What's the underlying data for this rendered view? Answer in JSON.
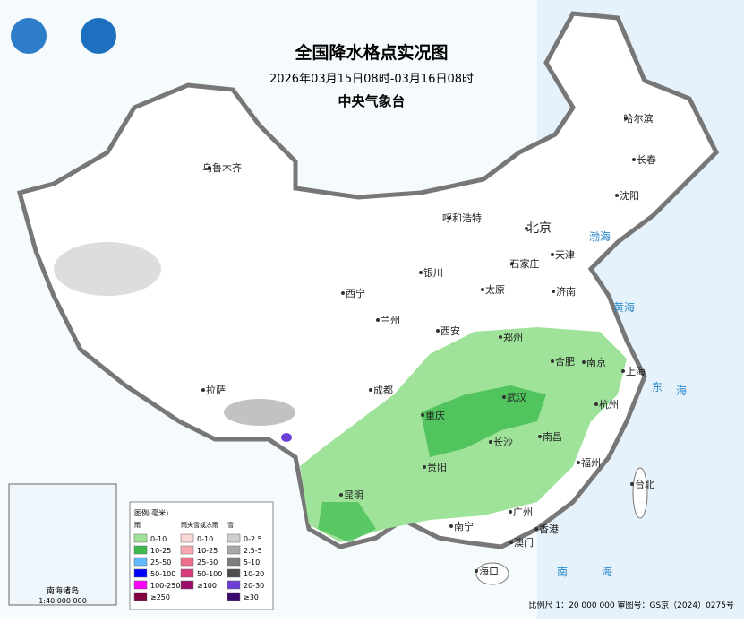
{
  "header": {
    "title": "全国降水格点实况图",
    "period": "2026年03月15日08时-03月16日08时",
    "agency": "中央气象台"
  },
  "cities": [
    "乌鲁木齐",
    "哈尔滨",
    "长春",
    "沈阳",
    "呼和浩特",
    "北京",
    "天津",
    "石家庄",
    "银川",
    "太原",
    "济南",
    "西宁",
    "兰州",
    "郑州",
    "西安",
    "合肥",
    "南京",
    "上海",
    "拉萨",
    "成都",
    "武汉",
    "杭州",
    "重庆",
    "长沙",
    "南昌",
    "贵阳",
    "福州",
    "台北",
    "昆明",
    "南宁",
    "广州",
    "香港",
    "澳门",
    "海口"
  ],
  "seas": [
    "渤海",
    "黄海",
    "东",
    "海",
    "南",
    "海"
  ],
  "legend": {
    "title": "图例(毫米)",
    "columns": [
      {
        "name": "雨",
        "items": [
          {
            "label": "0-10",
            "color": "#9fe39a"
          },
          {
            "label": "10-25",
            "color": "#3dbb4f"
          },
          {
            "label": "25-50",
            "color": "#62b8ff"
          },
          {
            "label": "50-100",
            "color": "#0000fe"
          },
          {
            "label": "100-250",
            "color": "#fa00fa"
          },
          {
            "label": "≥250",
            "color": "#810040"
          }
        ]
      },
      {
        "name": "雨夹雪或冻雨",
        "items": [
          {
            "label": "0-10",
            "color": "#fbd6d6"
          },
          {
            "label": "10-25",
            "color": "#f7a8b0"
          },
          {
            "label": "25-50",
            "color": "#ee6f8c"
          },
          {
            "label": "50-100",
            "color": "#d63b7a"
          },
          {
            "label": "≥100",
            "color": "#9a0e6b"
          }
        ]
      },
      {
        "name": "雪",
        "items": [
          {
            "label": "0-2.5",
            "color": "#cfcfcf"
          },
          {
            "label": "2.5-5",
            "color": "#a8a8a8"
          },
          {
            "label": "5-10",
            "color": "#7d7d7d"
          },
          {
            "label": "10-20",
            "color": "#4d4d4d"
          },
          {
            "label": "20-30",
            "color": "#6b3fd6"
          },
          {
            "label": "≥30",
            "color": "#3b0a6e"
          }
        ]
      }
    ]
  },
  "inset": {
    "title": "南海诸岛",
    "scale": "1:40 000 000"
  },
  "footer": "比例尺 1：20 000 000  审图号：GS京（2024）0275号"
}
